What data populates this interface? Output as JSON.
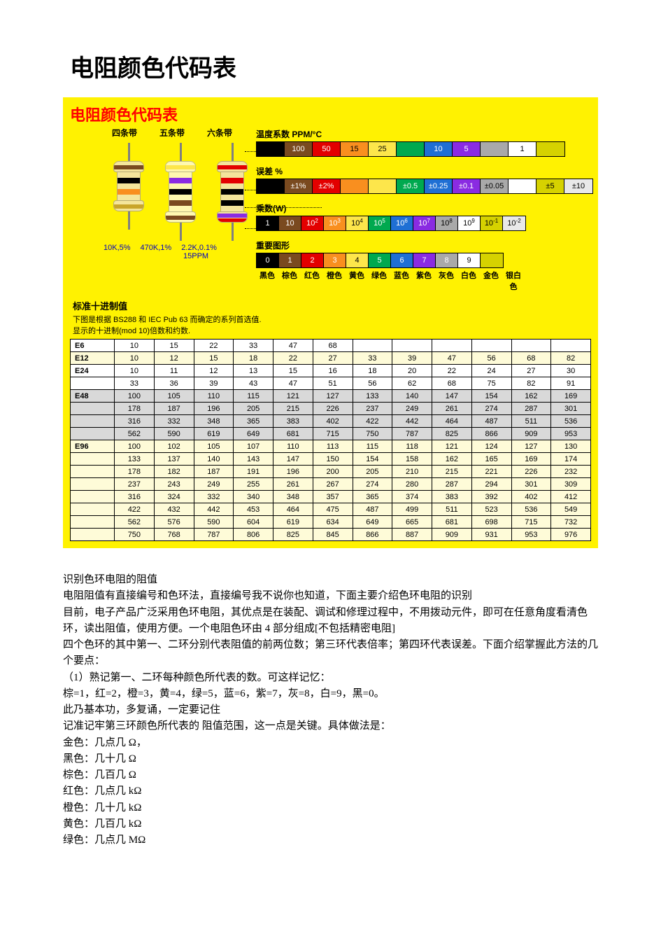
{
  "doc_title": "电阻颜色代码表",
  "panel": {
    "title": "电阻颜色代码表",
    "title_color": "#ff0000",
    "bg": "#fff201",
    "band_labels": [
      "四条带",
      "五条带",
      "六条带"
    ],
    "resistor_examples": {
      "captions": [
        "10K,5%",
        "470K,1%",
        "2.2K,0.1%"
      ],
      "caption2": "15PPM",
      "caption_color": "#0000c0"
    },
    "resistors": [
      {
        "body_color": "#f4e59c",
        "cap_top_stripe": "#7a4a1f",
        "segments": [
          "#f4e59c",
          "#000000",
          "#f4e59c",
          "#f98f1f",
          "#f4e59c"
        ],
        "cap_bot_stripe": "#c9a52b"
      },
      {
        "body_color": "#fef8b0",
        "cap_top_stripe": "#fde64b",
        "segments": [
          "#fef8b0",
          "#8a2be2",
          "#fef8b0",
          "#000000",
          "#fef8b0",
          "#7a4a1f",
          "#fef8b0"
        ],
        "cap_bot_stripe": "#7a4a1f"
      },
      {
        "body_color": "#f4e59c",
        "cap_top_stripe": "#e30000",
        "segments": [
          "#f4e59c",
          "#e30000",
          "#f4e59c",
          "#000000",
          "#f4e59c",
          "#000000",
          "#f4e59c"
        ],
        "cap_bot_stripe1": "#8a2be2",
        "cap_bot_stripe2": "#e30000"
      }
    ],
    "legends": {
      "temp": {
        "label": "温度系数 PPM/°C",
        "cells": [
          {
            "bg": "#000000",
            "fg": "#ffffff",
            "text": ""
          },
          {
            "bg": "#7a4a1f",
            "fg": "#ffffff",
            "text": "100"
          },
          {
            "bg": "#e30000",
            "fg": "#ffffff",
            "text": "50"
          },
          {
            "bg": "#f98f1f",
            "fg": "#000000",
            "text": "15"
          },
          {
            "bg": "#fde64b",
            "fg": "#000000",
            "text": "25"
          },
          {
            "bg": "#00a94f",
            "fg": "#ffffff",
            "text": ""
          },
          {
            "bg": "#1f6fd4",
            "fg": "#ffffff",
            "text": "10"
          },
          {
            "bg": "#8a2be2",
            "fg": "#ffffff",
            "text": "5"
          },
          {
            "bg": "#a9a9a9",
            "fg": "#000000",
            "text": ""
          },
          {
            "bg": "#ffffff",
            "fg": "#000000",
            "text": "1"
          },
          {
            "bg": "#d6d200",
            "fg": "#000000",
            "text": ""
          }
        ]
      },
      "tol": {
        "label": "误差  %",
        "cells": [
          {
            "bg": "#000000",
            "fg": "#ffffff",
            "text": ""
          },
          {
            "bg": "#7a4a1f",
            "fg": "#ffffff",
            "text": "±1%"
          },
          {
            "bg": "#e30000",
            "fg": "#ffffff",
            "text": "±2%"
          },
          {
            "bg": "#f98f1f",
            "fg": "#000000",
            "text": ""
          },
          {
            "bg": "#fde64b",
            "fg": "#000000",
            "text": ""
          },
          {
            "bg": "#00a94f",
            "fg": "#ffffff",
            "text": "±0.5"
          },
          {
            "bg": "#1f6fd4",
            "fg": "#ffffff",
            "text": "±0.25"
          },
          {
            "bg": "#8a2be2",
            "fg": "#ffffff",
            "text": "±0.1"
          },
          {
            "bg": "#a9a9a9",
            "fg": "#000000",
            "text": "±0.05"
          },
          {
            "bg": "#ffffff",
            "fg": "#000000",
            "text": ""
          },
          {
            "bg": "#d6d200",
            "fg": "#000000",
            "text": "±5"
          },
          {
            "bg": "#e9e9e9",
            "fg": "#000000",
            "text": "±10"
          }
        ]
      },
      "mult": {
        "label": "乘数(W)",
        "cells": [
          {
            "bg": "#000000",
            "fg": "#ffffff",
            "base": "1",
            "exp": ""
          },
          {
            "bg": "#7a4a1f",
            "fg": "#ffffff",
            "base": "10",
            "exp": ""
          },
          {
            "bg": "#e30000",
            "fg": "#ffffff",
            "base": "10",
            "exp": "2"
          },
          {
            "bg": "#f98f1f",
            "fg": "#ffffff",
            "base": "10",
            "exp": "3"
          },
          {
            "bg": "#fde64b",
            "fg": "#000000",
            "base": "10",
            "exp": "4"
          },
          {
            "bg": "#00a94f",
            "fg": "#ffffff",
            "base": "10",
            "exp": "5"
          },
          {
            "bg": "#1f6fd4",
            "fg": "#ffffff",
            "base": "10",
            "exp": "6"
          },
          {
            "bg": "#8a2be2",
            "fg": "#ffffff",
            "base": "10",
            "exp": "7"
          },
          {
            "bg": "#a9a9a9",
            "fg": "#000000",
            "base": "10",
            "exp": "8"
          },
          {
            "bg": "#ffffff",
            "fg": "#000000",
            "base": "10",
            "exp": "9"
          },
          {
            "bg": "#d6d200",
            "fg": "#000000",
            "base": "10",
            "exp": "-1"
          },
          {
            "bg": "#e9e9e9",
            "fg": "#000000",
            "base": "10",
            "exp": "-2"
          }
        ]
      },
      "digit": {
        "label": "重要图形",
        "cells": [
          {
            "bg": "#000000",
            "fg": "#ffffff",
            "text": "0"
          },
          {
            "bg": "#7a4a1f",
            "fg": "#ffffff",
            "text": "1"
          },
          {
            "bg": "#e30000",
            "fg": "#ffffff",
            "text": "2"
          },
          {
            "bg": "#f98f1f",
            "fg": "#ffffff",
            "text": "3"
          },
          {
            "bg": "#fde64b",
            "fg": "#000000",
            "text": "4"
          },
          {
            "bg": "#00a94f",
            "fg": "#ffffff",
            "text": "5"
          },
          {
            "bg": "#1f6fd4",
            "fg": "#ffffff",
            "text": "6"
          },
          {
            "bg": "#8a2be2",
            "fg": "#ffffff",
            "text": "7"
          },
          {
            "bg": "#a9a9a9",
            "fg": "#ffffff",
            "text": "8"
          },
          {
            "bg": "#ffffff",
            "fg": "#000000",
            "text": "9"
          },
          {
            "bg": "#d6d200",
            "fg": "#000000",
            "text": ""
          }
        ]
      },
      "color_names": [
        "黑色",
        "棕色",
        "红色",
        "橙色",
        "黄色",
        "绿色",
        "蓝色",
        "紫色",
        "灰色",
        "白色",
        "金色",
        "银白色"
      ]
    },
    "std": {
      "title": "标准十进制值",
      "desc1": "下图是根据 BS288 和 IEC Pub 63 而确定的系列首选值.",
      "desc2": "显示的十进制(mod 10)倍数和约数.",
      "ncols": 12,
      "rows": [
        {
          "label": "E6",
          "bg": "bg-white",
          "vals": [
            "10",
            "15",
            "22",
            "33",
            "47",
            "68",
            "",
            "",
            "",
            "",
            "",
            ""
          ]
        },
        {
          "label": "E12",
          "bg": "bg-cream",
          "vals": [
            "10",
            "12",
            "15",
            "18",
            "22",
            "27",
            "33",
            "39",
            "47",
            "56",
            "68",
            "82"
          ]
        },
        {
          "label": "E24",
          "bg": "bg-white",
          "vals": [
            "10",
            "11",
            "12",
            "13",
            "15",
            "16",
            "18",
            "20",
            "22",
            "24",
            "27",
            "30"
          ]
        },
        {
          "label": "",
          "bg": "bg-white",
          "vals": [
            "33",
            "36",
            "39",
            "43",
            "47",
            "51",
            "56",
            "62",
            "68",
            "75",
            "82",
            "91"
          ]
        },
        {
          "label": "E48",
          "bg": "bg-gray",
          "vals": [
            "100",
            "105",
            "110",
            "115",
            "121",
            "127",
            "133",
            "140",
            "147",
            "154",
            "162",
            "169"
          ]
        },
        {
          "label": "",
          "bg": "bg-gray",
          "vals": [
            "178",
            "187",
            "196",
            "205",
            "215",
            "226",
            "237",
            "249",
            "261",
            "274",
            "287",
            "301"
          ]
        },
        {
          "label": "",
          "bg": "bg-gray",
          "vals": [
            "316",
            "332",
            "348",
            "365",
            "383",
            "402",
            "422",
            "442",
            "464",
            "487",
            "511",
            "536"
          ]
        },
        {
          "label": "",
          "bg": "bg-gray",
          "vals": [
            "562",
            "590",
            "619",
            "649",
            "681",
            "715",
            "750",
            "787",
            "825",
            "866",
            "909",
            "953"
          ]
        },
        {
          "label": "E96",
          "bg": "bg-cream",
          "vals": [
            "100",
            "102",
            "105",
            "107",
            "110",
            "113",
            "115",
            "118",
            "121",
            "124",
            "127",
            "130"
          ]
        },
        {
          "label": "",
          "bg": "bg-cream",
          "vals": [
            "133",
            "137",
            "140",
            "143",
            "147",
            "150",
            "154",
            "158",
            "162",
            "165",
            "169",
            "174"
          ]
        },
        {
          "label": "",
          "bg": "bg-cream",
          "vals": [
            "178",
            "182",
            "187",
            "191",
            "196",
            "200",
            "205",
            "210",
            "215",
            "221",
            "226",
            "232"
          ]
        },
        {
          "label": "",
          "bg": "bg-cream",
          "vals": [
            "237",
            "243",
            "249",
            "255",
            "261",
            "267",
            "274",
            "280",
            "287",
            "294",
            "301",
            "309"
          ]
        },
        {
          "label": "",
          "bg": "bg-cream",
          "vals": [
            "316",
            "324",
            "332",
            "340",
            "348",
            "357",
            "365",
            "374",
            "383",
            "392",
            "402",
            "412"
          ]
        },
        {
          "label": "",
          "bg": "bg-cream",
          "vals": [
            "422",
            "432",
            "442",
            "453",
            "464",
            "475",
            "487",
            "499",
            "511",
            "523",
            "536",
            "549"
          ]
        },
        {
          "label": "",
          "bg": "bg-cream",
          "vals": [
            "562",
            "576",
            "590",
            "604",
            "619",
            "634",
            "649",
            "665",
            "681",
            "698",
            "715",
            "732"
          ]
        },
        {
          "label": "",
          "bg": "bg-cream",
          "vals": [
            "750",
            "768",
            "787",
            "806",
            "825",
            "845",
            "866",
            "887",
            "909",
            "931",
            "953",
            "976"
          ]
        }
      ]
    }
  },
  "body_paragraphs": [
    "  识别色环电阻的阻值",
    "电阻阻值有直接编号和色环法，直接编号我不说你也知道，下面主要介绍色环电阻的识别",
    "目前，电子产品广泛采用色环电阻，其优点是在装配、调试和修理过程中，不用拨动元件，即可在任意角度看清色环，读出阻值，使用方便。一个电阻色环由 4 部分组成[不包括精密电阻]",
    "四个色环的其中第一、二环分别代表阻值的前两位数；第三环代表倍率；第四环代表误差。下面介绍掌握此方法的几个要点：",
    "（1）熟记第一、二环每种颜色所代表的数。可这样记忆：",
    "棕=1，红=2，橙=3，黄=4，绿=5，蓝=6，紫=7，灰=8，白=9，黑=0。",
    "此乃基本功，多复诵，一定要记住",
    "记准记牢第三环颜色所代表的 阻值范围，这一点是关键。具体做法是：",
    "金色：几点几 Ω，",
    "黑色：几十几 Ω",
    "棕色：几百几 Ω",
    "红色：几点几 kΩ",
    "橙色：几十几 kΩ",
    "黄色：几百几 kΩ",
    "绿色：几点几 MΩ"
  ]
}
